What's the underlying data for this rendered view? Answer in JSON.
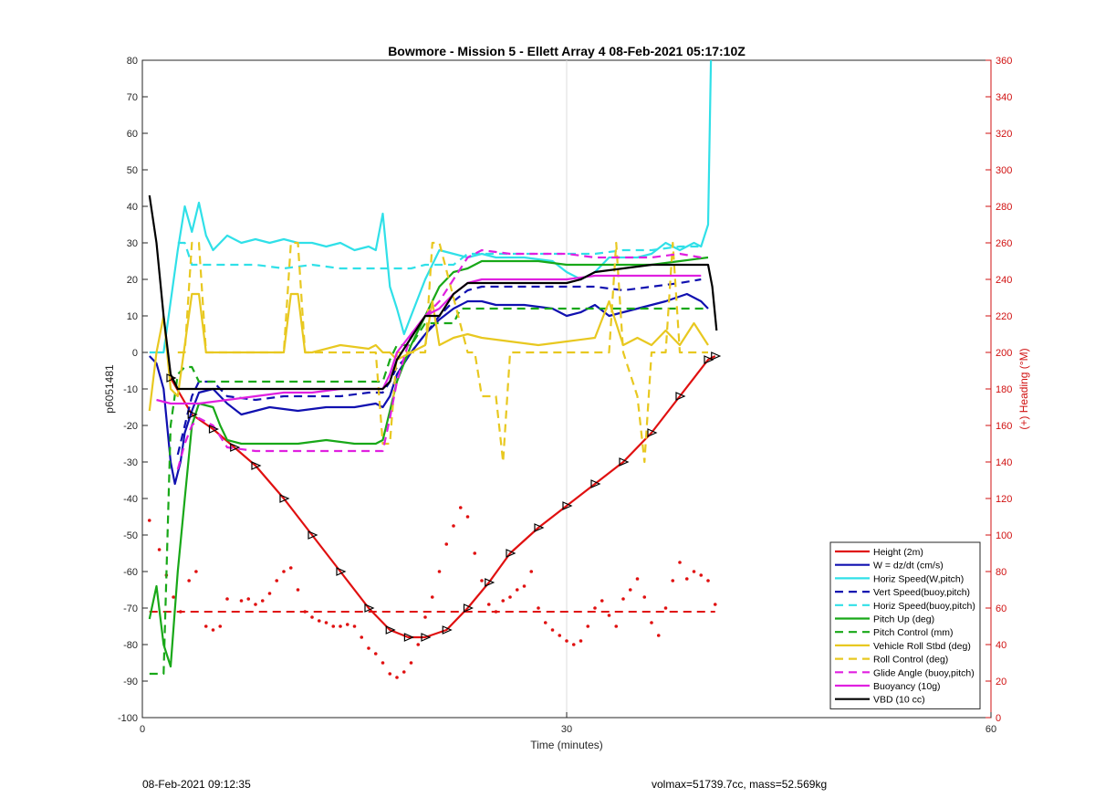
{
  "chart_data": {
    "type": "line",
    "title": "Bowmore - Mission 5 - Ellett Array 4 08-Feb-2021 05:17:10Z",
    "xlabel": "Time (minutes)",
    "ylabel": "p6051481",
    "y2label": "(+) Heading (°M)",
    "xlim": [
      0,
      60
    ],
    "ylim": [
      -100,
      80
    ],
    "y2lim": [
      0,
      360
    ],
    "xticks": [
      0,
      30,
      60
    ],
    "yticks": [
      -100,
      -90,
      -80,
      -70,
      -60,
      -50,
      -40,
      -30,
      -20,
      -10,
      0,
      10,
      20,
      30,
      40,
      50,
      60,
      70,
      80
    ],
    "y2ticks": [
      0,
      20,
      40,
      60,
      80,
      100,
      120,
      140,
      160,
      180,
      200,
      220,
      240,
      260,
      280,
      300,
      320,
      340,
      360
    ],
    "grid": "x-only",
    "legend_position": "bottom-right",
    "series": [
      {
        "name": "Height (2m)",
        "color": "#e01010",
        "dash": "solid",
        "marker": "triangle",
        "x": [
          2.0,
          3.5,
          5.0,
          6.5,
          8.0,
          10.0,
          12.0,
          14.0,
          16.0,
          17.5,
          18.8,
          20.0,
          21.5,
          23.0,
          24.5,
          26.0,
          28.0,
          30.0,
          32.0,
          34.0,
          36.0,
          38.0,
          40.0,
          40.5
        ],
        "y": [
          -7,
          -17,
          -21,
          -26,
          -31,
          -40,
          -50,
          -60,
          -70,
          -76,
          -78,
          -78,
          -76,
          -70,
          -63,
          -55,
          -48,
          -42,
          -36,
          -30,
          -22,
          -12,
          -2,
          -1
        ]
      },
      {
        "name": "W = dz/dt (cm/s)",
        "color": "#1010b0",
        "dash": "solid",
        "x": [
          0.5,
          1.0,
          1.5,
          2.0,
          2.3,
          2.7,
          3.0,
          3.5,
          4.0,
          5.0,
          6.0,
          7.0,
          9.0,
          11.0,
          13.0,
          15.0,
          16.5,
          17.0,
          17.5,
          18.0,
          19.0,
          20.0,
          21.0,
          22.0,
          23.0,
          24.0,
          25.0,
          27.0,
          29.0,
          30.0,
          31.0,
          32.0,
          33.0,
          35.0,
          37.0,
          38.5,
          39.5,
          40.0
        ],
        "y": [
          -1,
          -3,
          -10,
          -30,
          -36,
          -30,
          -22,
          -16,
          -11,
          -10,
          -14,
          -17,
          -15,
          -16,
          -15,
          -15,
          -14,
          -15,
          -12,
          -6,
          0,
          5,
          9,
          12,
          14,
          14,
          13,
          13,
          12,
          10,
          11,
          13,
          10,
          12,
          14,
          16,
          14,
          12
        ]
      },
      {
        "name": "Horiz Speed(W,pitch)",
        "color": "#30e0e8",
        "dash": "solid",
        "x": [
          0.5,
          1.5,
          2.5,
          3.0,
          3.5,
          4.0,
          4.5,
          5.0,
          6.0,
          7.0,
          8.0,
          9.0,
          10.0,
          11.0,
          12.0,
          13.0,
          14.0,
          15.0,
          16.0,
          16.5,
          17.0,
          17.5,
          18.0,
          18.5,
          19.0,
          20.0,
          21.0,
          22.0,
          23.0,
          24.0,
          25.0,
          27.0,
          29.0,
          30.0,
          31.0,
          32.0,
          33.0,
          35.0,
          36.0,
          37.0,
          38.0,
          39.0,
          39.5,
          40.0,
          40.2
        ],
        "y": [
          0,
          0,
          28,
          40,
          33,
          41,
          32,
          28,
          32,
          30,
          31,
          30,
          31,
          30,
          30,
          29,
          30,
          28,
          29,
          28,
          38,
          18,
          12,
          5,
          10,
          20,
          28,
          27,
          26,
          27,
          26,
          26,
          25,
          22,
          20,
          22,
          26,
          26,
          27,
          30,
          28,
          30,
          29,
          35,
          80
        ]
      },
      {
        "name": "Vert Speed(buoy,pitch)",
        "color": "#1010b0",
        "dash": "dashed",
        "x": [
          2.5,
          3.0,
          3.5,
          4.0,
          5.0,
          6.0,
          8.0,
          10.0,
          12.0,
          14.0,
          16.0,
          17.0,
          17.5,
          18.0,
          19.0,
          20.0,
          21.0,
          22.0,
          23.0,
          24.0,
          26.0,
          28.0,
          30.0,
          32.0,
          34.0,
          36.0,
          38.0,
          39.5
        ],
        "y": [
          -28,
          -20,
          -12,
          -8,
          -8,
          -12,
          -13,
          -12,
          -12,
          -12,
          -11,
          -11,
          -8,
          -4,
          0,
          5,
          10,
          14,
          17,
          18,
          18,
          18,
          18,
          18,
          17,
          18,
          19,
          20
        ]
      },
      {
        "name": "Horiz Speed(buoy,pitch)",
        "color": "#30e0e8",
        "dash": "dashed",
        "x": [
          2.5,
          3.0,
          3.5,
          4.0,
          5.0,
          6.0,
          8.0,
          10.0,
          12.0,
          14.0,
          16.0,
          17.0,
          17.5,
          18.0,
          19.0,
          20.0,
          21.0,
          22.0,
          23.0,
          24.0,
          26.0,
          28.0,
          30.0,
          32.0,
          34.0,
          36.0,
          38.0,
          39.5
        ],
        "y": [
          30,
          30,
          24,
          24,
          24,
          24,
          24,
          23,
          24,
          23,
          23,
          23,
          23,
          23,
          23,
          24,
          24,
          24,
          27,
          27,
          27,
          27,
          27,
          27,
          28,
          28,
          29,
          29
        ]
      },
      {
        "name": "Pitch Up (deg)",
        "color": "#18a818",
        "dash": "solid",
        "x": [
          0.5,
          1.0,
          1.5,
          2.0,
          2.5,
          3.0,
          3.5,
          4.0,
          5.0,
          5.5,
          6.0,
          7.0,
          9.0,
          11.0,
          13.0,
          15.0,
          16.5,
          17.0,
          17.5,
          18.0,
          19.0,
          20.0,
          21.0,
          22.0,
          23.0,
          24.0,
          26.0,
          28.0,
          30.0,
          32.0,
          34.0,
          36.0,
          38.0,
          40.0
        ],
        "y": [
          -73,
          -64,
          -80,
          -86,
          -60,
          -40,
          -20,
          -14,
          -15,
          -20,
          -24,
          -25,
          -25,
          -25,
          -24,
          -25,
          -25,
          -24,
          -16,
          -8,
          2,
          10,
          18,
          22,
          23,
          25,
          25,
          25,
          24,
          24,
          24,
          24,
          25,
          26
        ]
      },
      {
        "name": "Pitch Control (mm)",
        "color": "#18a818",
        "dash": "dashed",
        "x": [
          0.5,
          1.5,
          2.0,
          2.5,
          3.0,
          3.5,
          4.0,
          6.0,
          8.0,
          10.0,
          12.0,
          14.0,
          16.0,
          17.0,
          17.5,
          18.0,
          19.0,
          20.0,
          21.0,
          22.0,
          22.5,
          23.0,
          24.0,
          26.0,
          28.0,
          30.0,
          32.0,
          34.0,
          36.0,
          38.0,
          40.0
        ],
        "y": [
          -88,
          -88,
          -20,
          -6,
          -4,
          -4,
          -8,
          -8,
          -8,
          -8,
          -8,
          -8,
          -8,
          -8,
          -2,
          2,
          2,
          8,
          8,
          8,
          12,
          12,
          12,
          12,
          12,
          12,
          12,
          12,
          12,
          12,
          12
        ]
      },
      {
        "name": "Vehicle Roll Stbd (deg)",
        "color": "#e8c820",
        "dash": "solid",
        "x": [
          0.5,
          1.0,
          1.5,
          2.0,
          2.5,
          3.0,
          3.5,
          4.0,
          4.5,
          5.0,
          6.0,
          8.0,
          10.0,
          10.5,
          11.0,
          11.5,
          12.0,
          14.0,
          16.0,
          16.5,
          17.0,
          17.5,
          18.0,
          20.0,
          20.5,
          21.0,
          22.0,
          23.0,
          24.0,
          26.0,
          28.0,
          30.0,
          32.0,
          33.0,
          34.0,
          35.0,
          36.0,
          37.0,
          38.0,
          39.0,
          40.0
        ],
        "y": [
          -16,
          0,
          10,
          -10,
          -12,
          2,
          16,
          16,
          0,
          0,
          0,
          0,
          0,
          16,
          16,
          0,
          0,
          2,
          1,
          2,
          0,
          0,
          -2,
          2,
          14,
          2,
          4,
          5,
          4,
          3,
          2,
          3,
          4,
          14,
          2,
          4,
          2,
          6,
          2,
          8,
          2
        ]
      },
      {
        "name": "Roll Control (deg)",
        "color": "#e8c820",
        "dash": "dashed",
        "x": [
          2.5,
          3.0,
          3.5,
          4.0,
          4.5,
          5.0,
          8.0,
          10.0,
          10.5,
          11.0,
          11.5,
          12.0,
          15.0,
          16.5,
          17.0,
          17.5,
          18.0,
          20.0,
          20.5,
          21.0,
          23.0,
          23.5,
          24.0,
          25.0,
          25.5,
          26.0,
          27.0,
          30.0,
          33.0,
          33.5,
          34.0,
          35.0,
          35.5,
          36.0,
          37.0,
          37.5,
          38.0,
          40.0
        ],
        "y": [
          0,
          0,
          30,
          30,
          0,
          0,
          0,
          0,
          30,
          30,
          0,
          0,
          0,
          0,
          -25,
          -25,
          0,
          0,
          30,
          30,
          0,
          0,
          -12,
          -12,
          -30,
          0,
          0,
          0,
          0,
          30,
          0,
          -12,
          -30,
          0,
          0,
          30,
          0,
          0
        ]
      },
      {
        "name": "Glide Angle (buoy,pitch)",
        "color": "#e020e0",
        "dash": "dashed",
        "x": [
          2.5,
          3.0,
          3.5,
          4.0,
          5.0,
          6.0,
          8.0,
          10.0,
          12.0,
          14.0,
          16.0,
          17.0,
          17.5,
          18.0,
          19.0,
          20.0,
          21.0,
          22.0,
          23.0,
          24.0,
          26.0,
          28.0,
          30.0,
          32.0,
          34.0,
          36.0,
          38.0,
          39.5
        ],
        "y": [
          -32,
          -25,
          -20,
          -18,
          -20,
          -26,
          -27,
          -27,
          -27,
          -27,
          -27,
          -27,
          -18,
          -8,
          5,
          10,
          14,
          20,
          26,
          28,
          27,
          27,
          27,
          26,
          26,
          26,
          27,
          26
        ]
      },
      {
        "name": "Buoyancy (10g)",
        "color": "#e020e0",
        "dash": "solid",
        "x": [
          1.0,
          2.0,
          3.0,
          4.0,
          6.0,
          8.0,
          10.0,
          12.0,
          14.0,
          16.0,
          17.0,
          17.5,
          18.0,
          19.0,
          20.0,
          21.0,
          22.0,
          23.0,
          24.0,
          26.0,
          28.0,
          30.0,
          32.0,
          34.0,
          36.0,
          38.0,
          39.5
        ],
        "y": [
          -13,
          -14,
          -14,
          -14,
          -13,
          -12,
          -11,
          -11,
          -10,
          -10,
          -10,
          -6,
          0,
          5,
          10,
          12,
          16,
          19,
          20,
          20,
          20,
          20,
          21,
          21,
          21,
          21,
          21
        ]
      },
      {
        "name": "VBD (10 cc)",
        "color": "#000000",
        "dash": "solid",
        "x": [
          0.5,
          1.0,
          1.5,
          2.0,
          2.5,
          4.0,
          6.0,
          8.0,
          10.0,
          12.0,
          14.0,
          16.0,
          17.0,
          17.5,
          18.0,
          19.0,
          20.0,
          20.5,
          21.0,
          22.0,
          23.0,
          24.0,
          26.0,
          28.0,
          30.0,
          31.0,
          32.0,
          34.0,
          36.0,
          38.0,
          40.0,
          40.3,
          40.6
        ],
        "y": [
          43,
          30,
          10,
          -6,
          -10,
          -10,
          -10,
          -10,
          -10,
          -10,
          -10,
          -10,
          -10,
          -8,
          -2,
          4,
          10,
          10,
          10,
          16,
          19,
          19,
          19,
          19,
          19,
          20,
          22,
          23,
          24,
          24,
          24,
          18,
          6
        ]
      }
    ],
    "heading_dots": {
      "axis": "right",
      "color": "#e01010",
      "x": [
        0.5,
        1.2,
        1.7,
        2.2,
        2.7,
        3.3,
        3.8,
        4.5,
        5.0,
        5.5,
        6.0,
        7.0,
        7.5,
        8.0,
        8.5,
        9.0,
        9.5,
        10.0,
        10.5,
        11.0,
        11.5,
        12.0,
        12.5,
        13.0,
        13.5,
        14.0,
        14.5,
        15.0,
        15.5,
        16.0,
        16.5,
        17.0,
        17.5,
        18.0,
        18.5,
        19.0,
        19.5,
        20.0,
        20.5,
        21.0,
        21.5,
        22.0,
        22.5,
        23.0,
        23.5,
        24.0,
        24.5,
        25.0,
        25.5,
        26.0,
        26.5,
        27.0,
        27.5,
        28.0,
        28.5,
        29.0,
        29.5,
        30.0,
        30.5,
        31.0,
        31.5,
        32.0,
        32.5,
        33.0,
        33.5,
        34.0,
        34.5,
        35.0,
        35.5,
        36.0,
        36.5,
        37.0,
        37.5,
        38.0,
        38.5,
        39.0,
        39.5,
        40.0,
        40.5
      ],
      "y": [
        108,
        92,
        78,
        66,
        58,
        75,
        80,
        50,
        48,
        50,
        65,
        64,
        65,
        62,
        64,
        68,
        75,
        80,
        82,
        70,
        58,
        55,
        53,
        52,
        50,
        50,
        51,
        50,
        44,
        38,
        35,
        30,
        24,
        22,
        25,
        30,
        40,
        55,
        66,
        80,
        95,
        105,
        115,
        110,
        90,
        75,
        62,
        58,
        64,
        66,
        70,
        72,
        80,
        60,
        52,
        48,
        45,
        42,
        40,
        42,
        50,
        60,
        64,
        56,
        50,
        65,
        70,
        76,
        66,
        52,
        45,
        60,
        75,
        85,
        76,
        80,
        78,
        75,
        62
      ]
    },
    "heading_target": {
      "axis": "right",
      "color": "#e01010",
      "dash": "dashed",
      "y": 58,
      "x": [
        0.5,
        40.5
      ]
    }
  },
  "footer": {
    "left": "08-Feb-2021 09:12:35",
    "right": "volmax=51739.7cc, mass=52.569kg"
  }
}
